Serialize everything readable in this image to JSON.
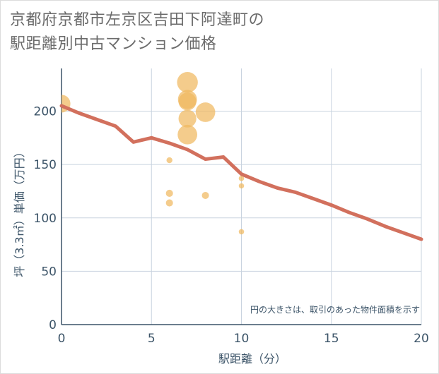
{
  "chart_data": {
    "type": "scatter",
    "title_lines": [
      "京都府京都市左京区吉田下阿達町の",
      "駅距離別中古マンション価格"
    ],
    "xlabel": "駅距離（分）",
    "ylabel": "坪（3.3㎡）単価（万円）",
    "xlim": [
      0,
      20
    ],
    "ylim": [
      0,
      240
    ],
    "xticks": [
      0,
      5,
      10,
      15,
      20
    ],
    "yticks": [
      0,
      50,
      100,
      150,
      200
    ],
    "grid": true,
    "annotation": "円の大きさは、取引のあった物件面積を示す",
    "points": [
      {
        "x": 0,
        "y": 207,
        "size": 3
      },
      {
        "x": 6,
        "y": 154,
        "size": 1
      },
      {
        "x": 6,
        "y": 123,
        "size": 1.2
      },
      {
        "x": 6,
        "y": 114,
        "size": 1.2
      },
      {
        "x": 7,
        "y": 227,
        "size": 3.5
      },
      {
        "x": 7,
        "y": 211,
        "size": 3.2
      },
      {
        "x": 7,
        "y": 209,
        "size": 3
      },
      {
        "x": 7,
        "y": 193,
        "size": 3
      },
      {
        "x": 7,
        "y": 178,
        "size": 3.3
      },
      {
        "x": 8,
        "y": 199,
        "size": 3.3
      },
      {
        "x": 8,
        "y": 121,
        "size": 1.2
      },
      {
        "x": 10,
        "y": 137,
        "size": 0.9
      },
      {
        "x": 10,
        "y": 130,
        "size": 0.9
      },
      {
        "x": 10,
        "y": 87,
        "size": 0.9
      }
    ],
    "trend_line": {
      "x": [
        0,
        1,
        2,
        3,
        4,
        5,
        6,
        7,
        8,
        9,
        10,
        11,
        12,
        13,
        14,
        15,
        16,
        17,
        18,
        19,
        20
      ],
      "y": [
        205,
        198,
        192,
        186,
        171,
        175,
        170,
        164,
        155,
        157,
        141,
        134,
        128,
        124,
        118,
        112,
        105,
        99,
        92,
        86,
        80
      ]
    },
    "colors": {
      "bubble": "#f0b860",
      "trend": "#d2705d",
      "grid": "#c8d3df",
      "axis": "#3c5468"
    }
  }
}
